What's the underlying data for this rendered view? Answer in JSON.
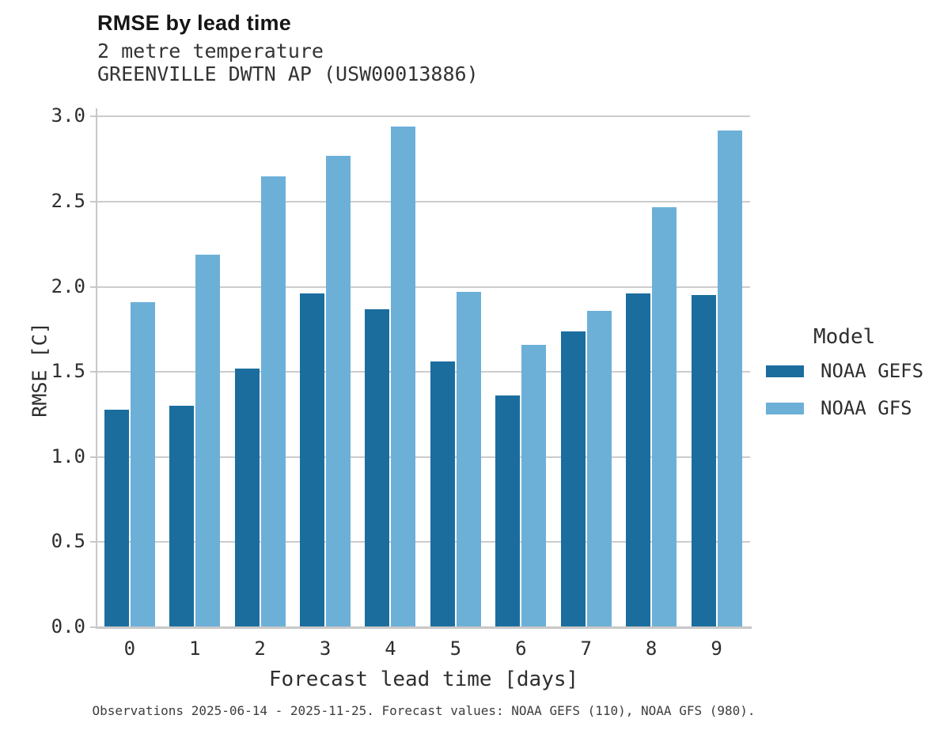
{
  "header": {
    "title": "RMSE by lead time",
    "subtitle_variable": "2 metre temperature",
    "subtitle_station": "GREENVILLE DWTN AP (USW00013886)"
  },
  "chart_data": {
    "type": "bar",
    "title": "RMSE by lead time",
    "subtitle": [
      "2 metre temperature",
      "GREENVILLE DWTN AP (USW00013886)"
    ],
    "categories": [
      "0",
      "1",
      "2",
      "3",
      "4",
      "5",
      "6",
      "7",
      "8",
      "9"
    ],
    "series": [
      {
        "name": "NOAA GEFS",
        "color": "#1b6d9e",
        "values": [
          1.28,
          1.3,
          1.52,
          1.96,
          1.87,
          1.56,
          1.36,
          1.74,
          1.96,
          1.95
        ]
      },
      {
        "name": "NOAA GFS",
        "color": "#6cb0d8",
        "values": [
          1.91,
          2.19,
          2.65,
          2.77,
          2.94,
          1.97,
          1.66,
          1.86,
          2.47,
          2.92
        ]
      }
    ],
    "xlabel": "Forecast lead time [days]",
    "ylabel": "RMSE [C]",
    "ylim": [
      0,
      3.05
    ],
    "yticks": [
      0.0,
      0.5,
      1.0,
      1.5,
      2.0,
      2.5,
      3.0
    ],
    "grid": true,
    "legend_title": "Model",
    "legend_position": "right"
  },
  "legend": {
    "title": "Model",
    "items": [
      {
        "label": "NOAA GEFS",
        "color": "#1b6d9e"
      },
      {
        "label": "NOAA GFS",
        "color": "#6cb0d8"
      }
    ]
  },
  "caption": "Observations 2025-06-14 - 2025-11-25. Forecast values: NOAA GEFS (110), NOAA GFS (980).",
  "colors": {
    "gefs": "#1b6d9e",
    "gfs": "#6cb0d8",
    "gridline": "#cccccc",
    "spine": "#c8c8c8",
    "title_text": "#161616",
    "body_text": "#2e2e2e"
  }
}
